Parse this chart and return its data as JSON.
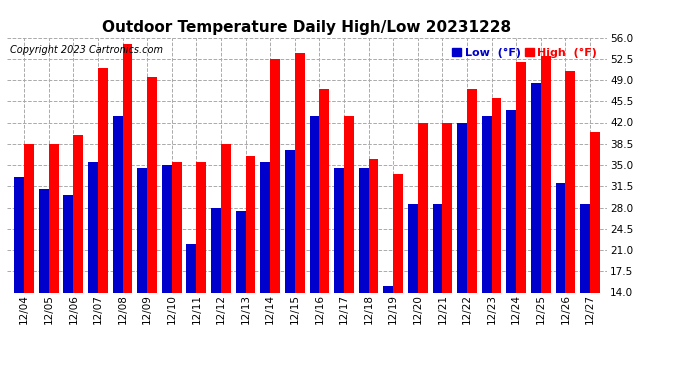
{
  "title": "Outdoor Temperature Daily High/Low 20231228",
  "copyright": "Copyright 2023 Cartronics.com",
  "legend_low": "Low",
  "legend_high": "High",
  "legend_unit": "(°F)",
  "ylim": [
    14.0,
    56.0
  ],
  "yticks": [
    14.0,
    17.5,
    21.0,
    24.5,
    28.0,
    31.5,
    35.0,
    38.5,
    42.0,
    45.5,
    49.0,
    52.5,
    56.0
  ],
  "dates": [
    "12/04",
    "12/05",
    "12/06",
    "12/07",
    "12/08",
    "12/09",
    "12/10",
    "12/11",
    "12/12",
    "12/13",
    "12/14",
    "12/15",
    "12/16",
    "12/17",
    "12/18",
    "12/19",
    "12/20",
    "12/21",
    "12/22",
    "12/23",
    "12/24",
    "12/25",
    "12/26",
    "12/27"
  ],
  "highs": [
    38.5,
    38.5,
    40.0,
    51.0,
    55.0,
    49.5,
    35.5,
    35.5,
    38.5,
    36.5,
    52.5,
    53.5,
    47.5,
    43.0,
    36.0,
    33.5,
    42.0,
    42.0,
    47.5,
    46.0,
    52.0,
    53.0,
    50.5,
    40.5
  ],
  "lows": [
    33.0,
    31.0,
    30.0,
    35.5,
    43.0,
    34.5,
    35.0,
    22.0,
    28.0,
    27.5,
    35.5,
    37.5,
    43.0,
    34.5,
    34.5,
    15.0,
    28.5,
    28.5,
    42.0,
    43.0,
    44.0,
    48.5,
    32.0,
    28.5
  ],
  "bar_color_high": "#ff0000",
  "bar_color_low": "#0000cc",
  "background_color": "#ffffff",
  "grid_color": "#aaaaaa",
  "title_fontsize": 11,
  "copyright_fontsize": 7,
  "tick_fontsize": 7.5,
  "legend_fontsize": 8,
  "bar_width": 0.4
}
